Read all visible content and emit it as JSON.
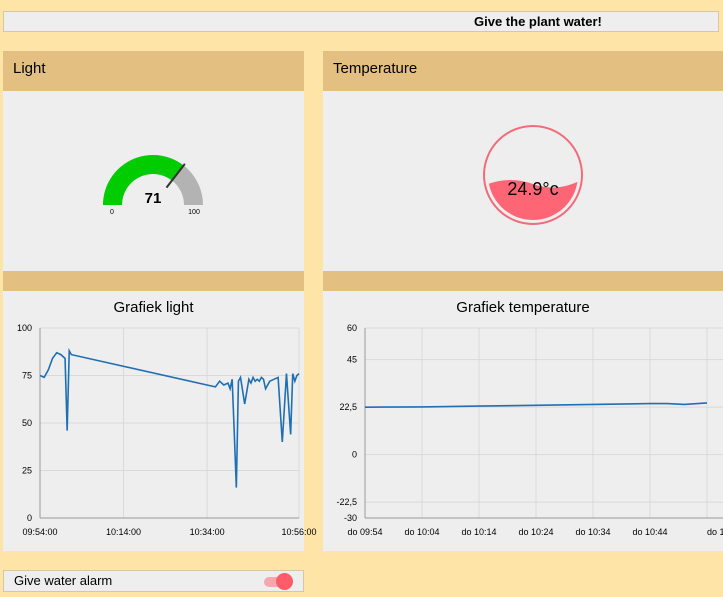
{
  "topbar": {
    "water_button": "Give the plant water!"
  },
  "light": {
    "group_title": "Light",
    "gauge": {
      "value": 71,
      "min": 0,
      "max": 100,
      "min_label": "0",
      "max_label": "100",
      "fill_color": "#00cc00",
      "track_color": "#b3b3b3"
    }
  },
  "temperature": {
    "group_title": "Temperature",
    "tank": {
      "value_text": "24.9°c",
      "fill_color": "#ff6675",
      "ring_color": "#f26b7a"
    }
  },
  "chart_data": [
    {
      "type": "line",
      "title": "Grafiek light",
      "ylim": [
        0,
        100
      ],
      "y_ticks": [
        "100",
        "75",
        "50",
        "25",
        "0"
      ],
      "x_ticks": [
        "09:54:00",
        "10:14:00",
        "10:34:00",
        "10:56:00"
      ],
      "series": [
        {
          "color": "#1f6fb4",
          "x": [
            "09:54:00",
            "09:55:00",
            "09:56:00",
            "09:57:00",
            "09:58:00",
            "09:59:00",
            "10:00:00",
            "10:00:30",
            "10:01:00",
            "10:01:30",
            "10:36:00",
            "10:37:00",
            "10:38:00",
            "10:39:00",
            "10:39:30",
            "10:40:00",
            "10:40:30",
            "10:41:00",
            "10:41:30",
            "10:42:00",
            "10:43:00",
            "10:44:00",
            "10:44:30",
            "10:45:00",
            "10:45:30",
            "10:46:00",
            "10:46:30",
            "10:47:00",
            "10:47:30",
            "10:48:00",
            "10:49:00",
            "10:50:00",
            "10:51:00",
            "10:52:00",
            "10:53:00",
            "10:54:00",
            "10:54:30",
            "10:55:00",
            "10:55:30",
            "10:56:00"
          ],
          "y": [
            75,
            74,
            78,
            84,
            87,
            86,
            84,
            46,
            88,
            86,
            69,
            72,
            70,
            71,
            68,
            73,
            45,
            16,
            72,
            74,
            60,
            73,
            71,
            74,
            72,
            73,
            72,
            74,
            73,
            68,
            72,
            73,
            74,
            40,
            76,
            44,
            76,
            72,
            75,
            76
          ]
        }
      ]
    },
    {
      "type": "line",
      "title": "Grafiek temperature",
      "ylim": [
        -30,
        60
      ],
      "y_ticks": [
        "60",
        "45",
        "22,5",
        "0",
        "-22,5",
        "-30"
      ],
      "x_ticks": [
        "do 09:54",
        "do 10:04",
        "do 10:14",
        "do 10:24",
        "do 10:34",
        "do 10:44",
        "do 1"
      ],
      "series": [
        {
          "color": "#1f6fb4",
          "x": [
            "09:54",
            "10:04",
            "10:14",
            "10:24",
            "10:34",
            "10:44",
            "10:47",
            "10:50",
            "10:54"
          ],
          "y": [
            22.5,
            22.6,
            23.0,
            23.4,
            23.8,
            24.2,
            24.2,
            23.8,
            24.5
          ]
        }
      ]
    }
  ],
  "alarm": {
    "label": "Give water alarm",
    "enabled": true
  }
}
